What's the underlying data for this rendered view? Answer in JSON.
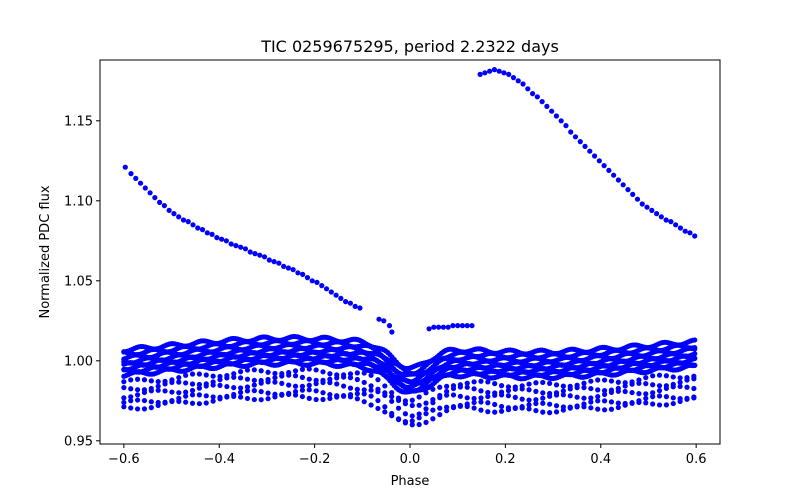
{
  "chart_data": {
    "type": "scatter",
    "title": "TIC 0259675295, period 2.2322 days",
    "xlabel": "Phase",
    "ylabel": "Normalized PDC flux",
    "xlim": [
      -0.65,
      0.65
    ],
    "ylim": [
      0.948,
      1.188
    ],
    "xticks": [
      -0.6,
      -0.4,
      -0.2,
      0.0,
      0.2,
      0.4,
      0.6
    ],
    "xtick_labels": [
      "−0.6",
      "−0.4",
      "−0.2",
      "0.0",
      "0.2",
      "0.4",
      "0.6"
    ],
    "yticks": [
      0.95,
      1.0,
      1.05,
      1.1,
      1.15
    ],
    "ytick_labels": [
      "0.95",
      "1.00",
      "1.05",
      "1.10",
      "1.15"
    ],
    "grid": false,
    "legend": "none",
    "marker_color": "#0000ff",
    "series": [
      {
        "points": [
          [
            -0.597,
            1.121
          ],
          [
            -0.585,
            1.117
          ],
          [
            -0.575,
            1.114
          ],
          [
            -0.565,
            1.111
          ],
          [
            -0.555,
            1.108
          ],
          [
            -0.545,
            1.105
          ],
          [
            -0.535,
            1.102
          ],
          [
            -0.525,
            1.099
          ],
          [
            -0.515,
            1.097
          ],
          [
            -0.505,
            1.094
          ],
          [
            -0.495,
            1.092
          ],
          [
            -0.485,
            1.09
          ],
          [
            -0.475,
            1.088
          ],
          [
            -0.465,
            1.087
          ],
          [
            -0.455,
            1.085
          ],
          [
            -0.445,
            1.083
          ],
          [
            -0.435,
            1.082
          ],
          [
            -0.425,
            1.08
          ],
          [
            -0.415,
            1.079
          ],
          [
            -0.405,
            1.077
          ],
          [
            -0.395,
            1.076
          ],
          [
            -0.385,
            1.075
          ],
          [
            -0.375,
            1.073
          ],
          [
            -0.365,
            1.072
          ],
          [
            -0.355,
            1.071
          ],
          [
            -0.345,
            1.07
          ],
          [
            -0.335,
            1.068
          ],
          [
            -0.325,
            1.067
          ],
          [
            -0.315,
            1.066
          ],
          [
            -0.305,
            1.065
          ],
          [
            -0.295,
            1.063
          ],
          [
            -0.285,
            1.062
          ],
          [
            -0.275,
            1.061
          ],
          [
            -0.265,
            1.059
          ],
          [
            -0.255,
            1.058
          ],
          [
            -0.245,
            1.057
          ],
          [
            -0.235,
            1.055
          ],
          [
            -0.225,
            1.054
          ],
          [
            -0.215,
            1.052
          ],
          [
            -0.205,
            1.05
          ],
          [
            -0.195,
            1.049
          ],
          [
            -0.185,
            1.047
          ],
          [
            -0.175,
            1.045
          ],
          [
            -0.165,
            1.043
          ],
          [
            -0.155,
            1.041
          ],
          [
            -0.145,
            1.039
          ],
          [
            -0.135,
            1.037
          ],
          [
            -0.125,
            1.036
          ],
          [
            -0.115,
            1.034
          ],
          [
            -0.105,
            1.033
          ],
          [
            -0.065,
            1.026
          ],
          [
            -0.055,
            1.025
          ],
          [
            -0.043,
            1.022
          ],
          [
            -0.038,
            1.018
          ],
          [
            0.05,
            1.021
          ],
          [
            0.06,
            1.021
          ],
          [
            0.07,
            1.021
          ],
          [
            0.08,
            1.021
          ],
          [
            0.09,
            1.022
          ],
          [
            0.1,
            1.022
          ],
          [
            0.11,
            1.022
          ],
          [
            0.12,
            1.022
          ],
          [
            0.13,
            1.022
          ],
          [
            0.04,
            1.02
          ],
          [
            0.147,
            1.179
          ],
          [
            0.157,
            1.18
          ],
          [
            0.167,
            1.181
          ],
          [
            0.177,
            1.182
          ],
          [
            0.187,
            1.181
          ],
          [
            0.197,
            1.18
          ],
          [
            0.207,
            1.179
          ],
          [
            0.217,
            1.177
          ],
          [
            0.227,
            1.175
          ],
          [
            0.237,
            1.173
          ],
          [
            0.247,
            1.17
          ],
          [
            0.257,
            1.167
          ],
          [
            0.267,
            1.165
          ],
          [
            0.277,
            1.162
          ],
          [
            0.287,
            1.159
          ],
          [
            0.297,
            1.156
          ],
          [
            0.307,
            1.153
          ],
          [
            0.317,
            1.15
          ],
          [
            0.327,
            1.147
          ],
          [
            0.337,
            1.143
          ],
          [
            0.347,
            1.14
          ],
          [
            0.357,
            1.137
          ],
          [
            0.367,
            1.134
          ],
          [
            0.377,
            1.131
          ],
          [
            0.387,
            1.128
          ],
          [
            0.397,
            1.125
          ],
          [
            0.407,
            1.122
          ],
          [
            0.417,
            1.119
          ],
          [
            0.427,
            1.116
          ],
          [
            0.437,
            1.113
          ],
          [
            0.447,
            1.11
          ],
          [
            0.457,
            1.107
          ],
          [
            0.467,
            1.104
          ],
          [
            0.477,
            1.101
          ],
          [
            0.487,
            1.098
          ],
          [
            0.497,
            1.096
          ],
          [
            0.507,
            1.094
          ],
          [
            0.517,
            1.092
          ],
          [
            0.527,
            1.09
          ],
          [
            0.537,
            1.088
          ],
          [
            0.547,
            1.087
          ],
          [
            0.557,
            1.085
          ],
          [
            0.567,
            1.083
          ],
          [
            0.577,
            1.081
          ],
          [
            0.587,
            1.08
          ],
          [
            0.597,
            1.078
          ]
        ]
      },
      {
        "band_offsets": [
          0.0095,
          0.007,
          0.0045,
          0.002,
          0.0,
          -0.002,
          -0.004,
          -0.006
        ],
        "deep_offsets": [
          -0.011,
          -0.015,
          -0.019,
          -0.024,
          -0.027
        ],
        "baseline": 1.0,
        "dip_depth": 0.014,
        "dip_halfwidth": 0.055
      }
    ]
  }
}
